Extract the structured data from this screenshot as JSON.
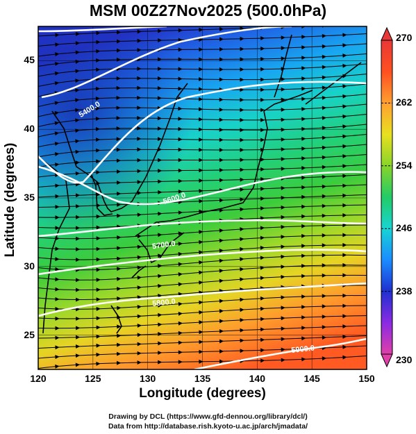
{
  "title": "MSM 00Z27Nov2025 (500.0hPa)",
  "x_axis": {
    "label": "Longitude (degrees)",
    "range": [
      120,
      150
    ],
    "ticks": [
      "120",
      "125",
      "130",
      "135",
      "140",
      "145",
      "150"
    ]
  },
  "y_axis": {
    "label": "Latitude  (degrees)",
    "range": [
      22.5,
      47.5
    ],
    "ticks": [
      "25",
      "30",
      "35",
      "40",
      "45"
    ]
  },
  "colorbar": {
    "range": [
      230,
      270
    ],
    "ticks": [
      "230",
      "238",
      "246",
      "254",
      "262",
      "270"
    ],
    "colors": [
      "#e040a8",
      "#8a2be2",
      "#1f30d0",
      "#1a8cff",
      "#18d4d4",
      "#22cc66",
      "#88d42a",
      "#e8e020",
      "#ffa030",
      "#ff5020",
      "#e83838"
    ]
  },
  "contours": {
    "color": "#ffffff",
    "labels": [
      {
        "text": "5400.0",
        "lon": 124.8,
        "lat": 41.3
      },
      {
        "text": "5600.0",
        "lon": 132.5,
        "lat": 34.8
      },
      {
        "text": "5700.0",
        "lon": 131.5,
        "lat": 31.4
      },
      {
        "text": "5800.0",
        "lon": 131.5,
        "lat": 27.2
      },
      {
        "text": "5900.0",
        "lon": 144.2,
        "lat": 23.8
      }
    ]
  },
  "credits": {
    "line1": "Drawing by DCL (https://www.gfd-dennou.org/library/dcl/)",
    "line2": "Data from http://database.rish.kyoto-u.ac.jp/arch/jmadata/"
  }
}
